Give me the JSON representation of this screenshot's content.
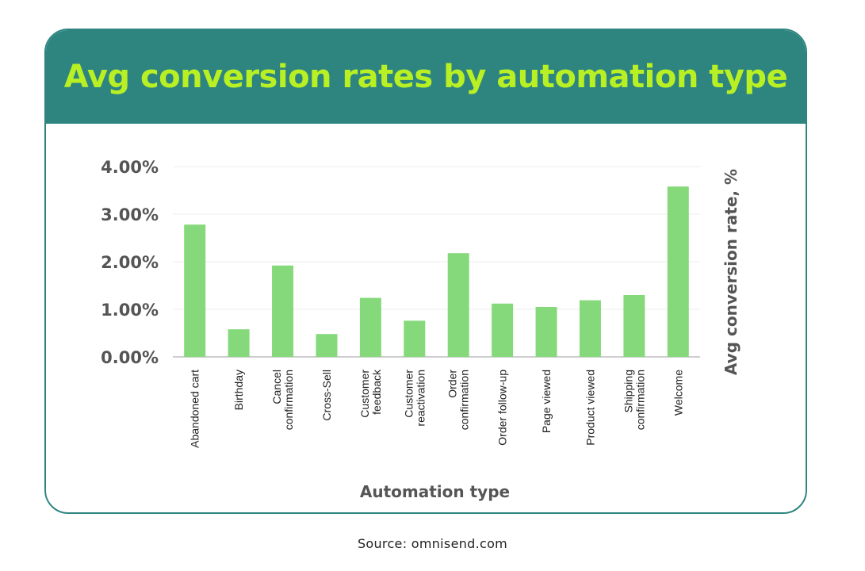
{
  "header": {
    "title": "Avg conversion rates by automation type"
  },
  "footer": {
    "source": "Source: omnisend.com"
  },
  "colors": {
    "header_bg": "#2e8580",
    "title": "#b8f024",
    "bar": "#86d97b",
    "axis_text": "#555555"
  },
  "chart_data": {
    "type": "bar",
    "title": "Avg conversion rates by automation type",
    "xlabel": "Automation type",
    "ylabel": "Avg conversion rate, %",
    "ylim": [
      0,
      4
    ],
    "yticks": [
      "0.00%",
      "1.00%",
      "2.00%",
      "3.00%",
      "4.00%"
    ],
    "grid": true,
    "categories": [
      "Abandoned cart",
      "Birthday",
      "Cancel confirmation",
      "Cross-Sell",
      "Customer feedback",
      "Customer reactivation",
      "Order confirmation",
      "Order follow-up",
      "Page viewed",
      "Product viewed",
      "Shipping confirmation",
      "Welcome"
    ],
    "category_lines": [
      [
        "Abandoned cart"
      ],
      [
        "Birthday"
      ],
      [
        "Cancel",
        "confirmation"
      ],
      [
        "Cross-Sell"
      ],
      [
        "Customer",
        "feedback"
      ],
      [
        "Customer",
        "reactivation"
      ],
      [
        "Order",
        "confirmation"
      ],
      [
        "Order follow-up"
      ],
      [
        "Page viewed"
      ],
      [
        "Product viewed"
      ],
      [
        "Shipping",
        "confirmation"
      ],
      [
        "Welcome"
      ]
    ],
    "values": [
      2.78,
      0.58,
      1.92,
      0.48,
      1.24,
      0.76,
      2.18,
      1.12,
      1.05,
      1.19,
      1.3,
      3.58
    ]
  }
}
